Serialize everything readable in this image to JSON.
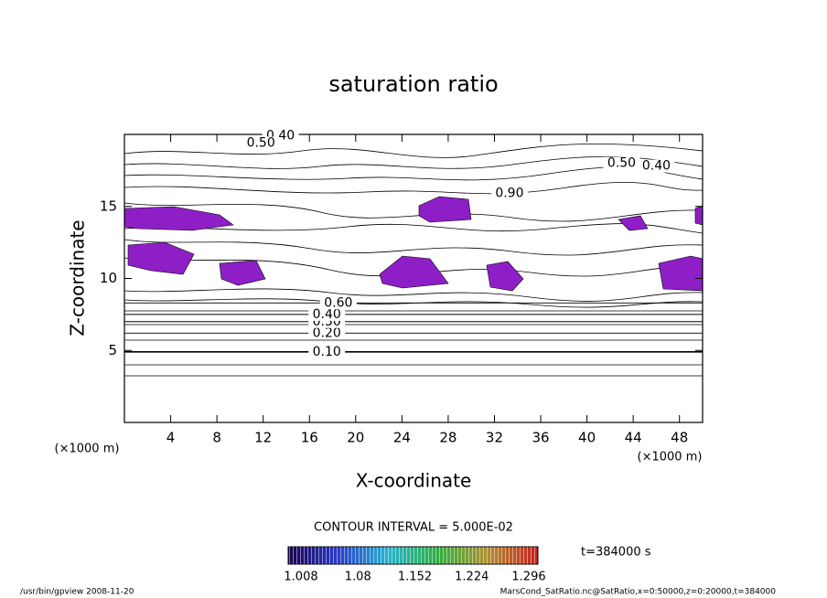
{
  "chart_data": {
    "type": "contour",
    "title": "saturation ratio",
    "x_label": "X-coordinate",
    "y_label": "Z-coordinate",
    "x_unit": "(×1000 m)",
    "y_unit": "(×1000 m)",
    "xlim": [
      0,
      50
    ],
    "ylim": [
      0,
      20
    ],
    "xticks": [
      4,
      8,
      12,
      16,
      20,
      24,
      28,
      32,
      36,
      40,
      44,
      48
    ],
    "yticks": [
      5,
      10,
      15
    ],
    "contour_interval": "CONTOUR INTERVAL = 5.000E-02",
    "time_label": "t=384000 s",
    "contour_labels": [
      {
        "value": 0.1,
        "label": "0.10",
        "x": 17.5,
        "z": 4.9
      },
      {
        "value": 0.2,
        "label": "0.20",
        "x": 17.5,
        "z": 6.2
      },
      {
        "value": 0.3,
        "label": "0.30",
        "x": 17.5,
        "z": 7.0
      },
      {
        "value": 0.4,
        "label": "0.40",
        "x": 17.5,
        "z": 7.5
      },
      {
        "value": 0.6,
        "label": "0.60",
        "x": 18.5,
        "z": 8.3
      },
      {
        "value": 0.4,
        "label": "0.40",
        "x": 13.5,
        "z": 19.9
      },
      {
        "value": 0.5,
        "label": "0.50",
        "x": 11.8,
        "z": 19.4
      },
      {
        "value": 0.5,
        "label": "0.50",
        "x": 43.0,
        "z": 18.0
      },
      {
        "value": 0.4,
        "label": "0.40",
        "x": 46.0,
        "z": 17.8
      },
      {
        "value": 0.9,
        "label": "0.90",
        "x": 33.3,
        "z": 15.9
      }
    ],
    "colorbar": {
      "ticks": [
        1.008,
        1.08,
        1.152,
        1.224,
        1.296
      ],
      "color": "#8e1fc6"
    },
    "footer_left": "/usr/bin/gpview  2008-11-20",
    "footer_right": "MarsCond_SatRatio.nc@SatRatio,x=0:50000,z=0:20000,t=384000"
  }
}
